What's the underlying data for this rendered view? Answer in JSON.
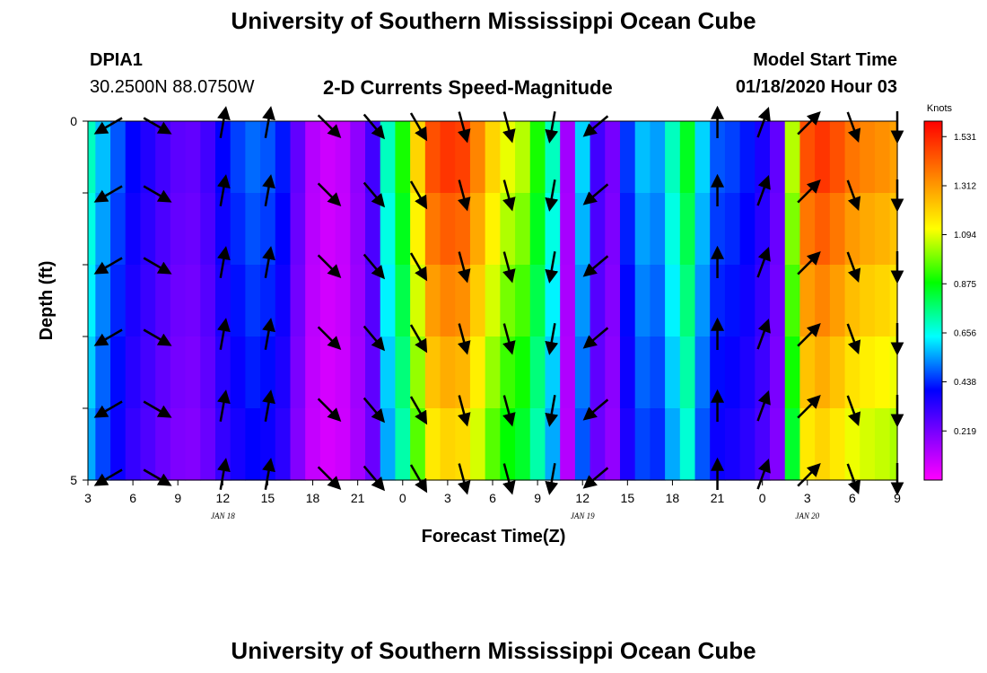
{
  "header": {
    "title": "University of Southern Mississippi Ocean Cube",
    "footer_title": "University of Southern Mississippi Ocean Cube",
    "station_id": "DPIA1",
    "station_coords": "30.2500N 88.0750W",
    "model_start_label": "Model Start Time",
    "model_start_value": "01/18/2020 Hour 03"
  },
  "chart_data": {
    "type": "heatmap",
    "title": "2-D Currents Speed-Magnitude",
    "xlabel": "Forecast Time(Z)",
    "ylabel": "Depth (ft)",
    "colorbar_label": "Knots",
    "x_tick_labels": [
      "3",
      "6",
      "9",
      "12",
      "15",
      "18",
      "21",
      "0",
      "3",
      "6",
      "9",
      "12",
      "15",
      "18",
      "21",
      "0",
      "3",
      "6",
      "9"
    ],
    "date_labels": [
      {
        "text": "JAN 18",
        "tick_index": 3
      },
      {
        "text": "JAN 19",
        "tick_index": 11
      },
      {
        "text": "JAN 20",
        "tick_index": 16
      }
    ],
    "y_tick_labels": [
      "0",
      "5"
    ],
    "ylim": [
      0,
      5
    ],
    "colorbar_ticks": [
      "1.531",
      "1.312",
      "1.094",
      "0.875",
      "0.656",
      "0.438",
      "0.219"
    ],
    "colorbar_range": [
      0.0,
      1.6
    ],
    "time_hours": [
      3,
      4,
      5,
      6,
      7,
      8,
      9,
      10,
      11,
      12,
      13,
      14,
      15,
      16,
      17,
      18,
      19,
      20,
      21,
      22,
      23,
      24,
      25,
      26,
      27,
      28,
      29,
      30,
      31,
      32,
      33,
      34,
      35,
      36,
      37,
      38,
      39,
      40,
      41,
      42,
      43,
      44,
      45,
      46,
      47,
      48,
      49,
      50,
      51,
      52,
      53,
      54,
      55,
      56,
      57
    ],
    "depth_levels_ft": [
      0,
      1,
      2,
      3,
      4,
      5
    ],
    "speed_profile_knots": [
      0.7,
      0.58,
      0.48,
      0.4,
      0.35,
      0.3,
      0.26,
      0.25,
      0.3,
      0.4,
      0.46,
      0.5,
      0.48,
      0.42,
      0.25,
      0.12,
      0.08,
      0.1,
      0.18,
      0.3,
      0.7,
      0.9,
      1.2,
      1.45,
      1.5,
      1.48,
      1.35,
      1.2,
      1.1,
      1.05,
      0.9,
      0.7,
      0.15,
      0.6,
      0.3,
      0.22,
      0.45,
      0.58,
      0.55,
      0.7,
      0.85,
      0.6,
      0.48,
      0.46,
      0.42,
      0.36,
      0.25,
      1.05,
      1.45,
      1.5,
      1.45,
      1.38,
      1.35,
      1.33,
      1.3
    ],
    "arrow_hours": [
      4.5,
      7.5,
      12,
      15,
      19,
      22,
      25,
      28,
      31,
      34,
      37,
      45,
      48,
      51,
      54,
      57
    ],
    "arrow_direction_deg": [
      240,
      120,
      10,
      10,
      135,
      140,
      150,
      165,
      165,
      190,
      230,
      0,
      20,
      45,
      160,
      180
    ]
  }
}
